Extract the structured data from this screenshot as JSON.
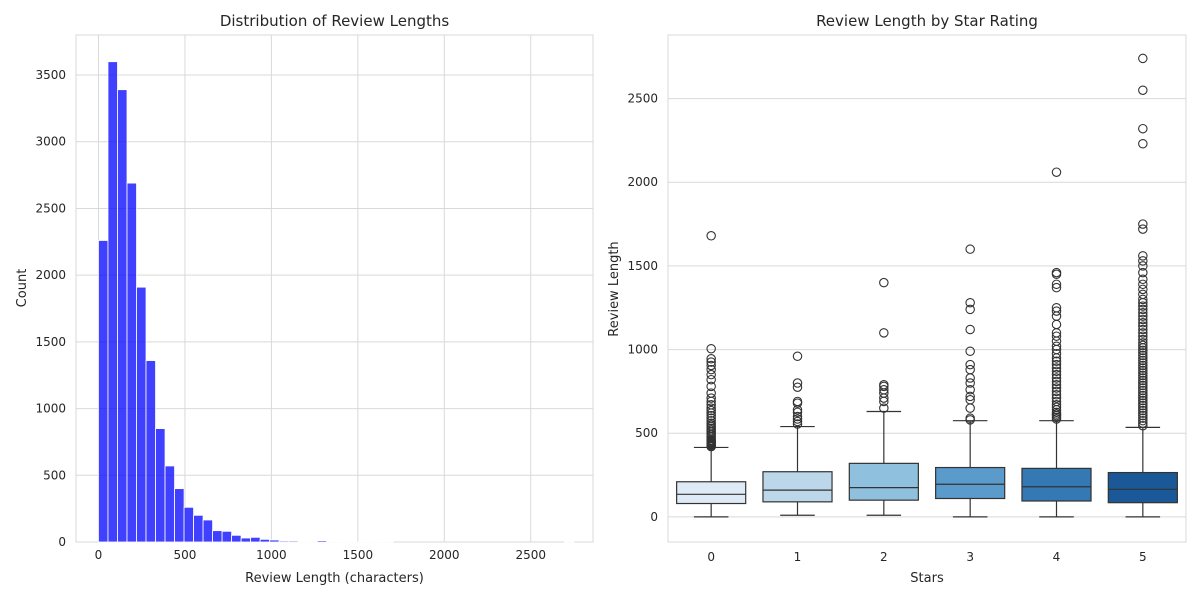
{
  "chart_data": [
    {
      "type": "bar",
      "title": "Distribution of Review Lengths",
      "xlabel": "Review Length (characters)",
      "ylabel": "Count",
      "xlim": [
        -130,
        2860
      ],
      "ylim": [
        0,
        3800
      ],
      "grid": true,
      "xticks": [
        "0",
        "500",
        "1000",
        "1500",
        "2000",
        "2500"
      ],
      "xtick_values": [
        0,
        500,
        1000,
        1500,
        2000,
        2500
      ],
      "yticks": [
        "0",
        "500",
        "1000",
        "1500",
        "2000",
        "2500",
        "3000",
        "3500"
      ],
      "ytick_values": [
        0,
        500,
        1000,
        1500,
        2000,
        2500,
        3000,
        3500
      ],
      "bar_color": "#0000ff",
      "bin_width": 55,
      "bin_edges_start": 0,
      "values": [
        2260,
        3600,
        3390,
        2690,
        1910,
        1360,
        850,
        570,
        400,
        260,
        200,
        165,
        85,
        80,
        50,
        30,
        35,
        20,
        15,
        8,
        8,
        5,
        3,
        10,
        2,
        2,
        1,
        1,
        1,
        1,
        1,
        0,
        0,
        0,
        0,
        0,
        0,
        0,
        0,
        0,
        0,
        0,
        0,
        0,
        0,
        0,
        0,
        0,
        0,
        1
      ]
    },
    {
      "type": "box",
      "title": "Review Length by Star Rating",
      "xlabel": "Stars",
      "ylabel": "Review Length",
      "ylim": [
        -150,
        2880
      ],
      "grid": true,
      "categories": [
        "0",
        "1",
        "2",
        "3",
        "4",
        "5"
      ],
      "yticks": [
        "0",
        "500",
        "1000",
        "1500",
        "2000",
        "2500"
      ],
      "ytick_values": [
        0,
        500,
        1000,
        1500,
        2000,
        2500
      ],
      "colors": [
        "#deebf7",
        "#bcd6ea",
        "#8fc0dd",
        "#5a9bcb",
        "#3478b4",
        "#1a5898"
      ],
      "boxes": [
        {
          "category": "0",
          "whislo": 0,
          "q1": 80,
          "med": 135,
          "q3": 210,
          "whishi": 415,
          "fliers": [
            420,
            425,
            430,
            435,
            440,
            445,
            450,
            455,
            460,
            470,
            480,
            490,
            500,
            510,
            520,
            530,
            540,
            550,
            560,
            575,
            590,
            605,
            620,
            635,
            650,
            670,
            690,
            710,
            740,
            780,
            820,
            850,
            880,
            905,
            925,
            945,
            1005,
            1680
          ]
        },
        {
          "category": "1",
          "whislo": 10,
          "q1": 90,
          "med": 160,
          "q3": 270,
          "whishi": 540,
          "fliers": [
            555,
            570,
            585,
            600,
            625,
            640,
            680,
            690,
            775,
            800,
            960
          ]
        },
        {
          "category": "2",
          "whislo": 10,
          "q1": 100,
          "med": 175,
          "q3": 320,
          "whishi": 630,
          "fliers": [
            650,
            690,
            710,
            740,
            760,
            780,
            790,
            1100,
            1400
          ]
        },
        {
          "category": "3",
          "whislo": 0,
          "q1": 110,
          "med": 195,
          "q3": 295,
          "whishi": 575,
          "fliers": [
            580,
            590,
            650,
            700,
            720,
            760,
            800,
            830,
            880,
            910,
            990,
            1120,
            1240,
            1280,
            1600
          ]
        },
        {
          "category": "4",
          "whislo": 0,
          "q1": 95,
          "med": 180,
          "q3": 290,
          "whishi": 575,
          "fliers": [
            585,
            595,
            605,
            615,
            625,
            640,
            655,
            670,
            690,
            710,
            730,
            750,
            770,
            790,
            810,
            830,
            850,
            870,
            890,
            910,
            930,
            950,
            975,
            1000,
            1020,
            1050,
            1080,
            1100,
            1150,
            1200,
            1230,
            1250,
            1370,
            1390,
            1450,
            1460,
            2060
          ]
        },
        {
          "category": "5",
          "whislo": 0,
          "q1": 85,
          "med": 165,
          "q3": 265,
          "whishi": 535,
          "fliers": [
            545,
            560,
            575,
            590,
            605,
            620,
            635,
            650,
            665,
            680,
            695,
            710,
            725,
            740,
            755,
            770,
            785,
            800,
            815,
            830,
            845,
            860,
            875,
            890,
            905,
            920,
            935,
            950,
            965,
            980,
            995,
            1010,
            1025,
            1040,
            1060,
            1080,
            1100,
            1120,
            1140,
            1160,
            1180,
            1200,
            1220,
            1240,
            1260,
            1280,
            1300,
            1330,
            1360,
            1390,
            1420,
            1460,
            1500,
            1530,
            1560,
            1720,
            1750,
            2230,
            2320,
            2550,
            2740
          ]
        }
      ]
    }
  ]
}
